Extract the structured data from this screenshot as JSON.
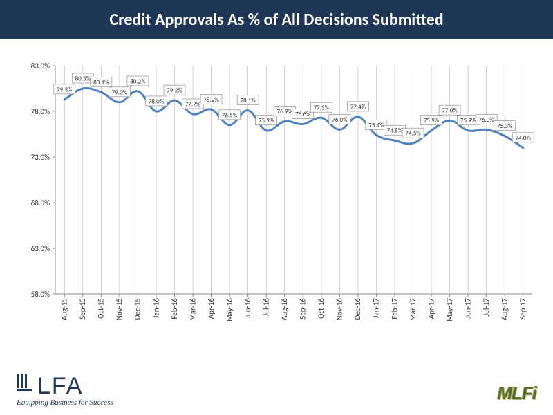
{
  "title": "Credit Approvals As % of All Decisions Submitted",
  "chart": {
    "type": "line",
    "background_color": "#ffffff",
    "line_color": "#4f81bd",
    "line_width": 3,
    "grid_color": "#a6a6a6",
    "axis_color": "#888888",
    "label_border_color": "#8f8f8f",
    "label_bg": "#ffffff",
    "label_fontsize": 9,
    "axis_fontsize": 11,
    "ylim": [
      58.0,
      83.0
    ],
    "ytick_step": 5.0,
    "y_format": "percent1",
    "categories": [
      "Aug-15",
      "Sep-15",
      "Oct-15",
      "Nov-15",
      "Dec-15",
      "Jan-16",
      "Feb-16",
      "Mar-16",
      "Apr-16",
      "May-16",
      "Jun-16",
      "Jul-16",
      "Aug-16",
      "Sep-16",
      "Oct-16",
      "Nov-16",
      "Dec-16",
      "Jan-17",
      "Feb-17",
      "Mar-17",
      "Apr-17",
      "May-17",
      "Jun-17",
      "Jul-17",
      "Aug-17",
      "Sep-17"
    ],
    "values": [
      79.3,
      80.5,
      80.1,
      79.0,
      80.2,
      78.0,
      79.2,
      77.7,
      78.2,
      76.5,
      78.1,
      75.9,
      76.9,
      76.6,
      77.3,
      76.0,
      77.4,
      75.4,
      74.8,
      74.5,
      75.9,
      77.0,
      75.9,
      76.0,
      75.3,
      74.0
    ],
    "data_label_text": [
      "79.3%",
      "80.5%",
      "80.1%",
      "79.0%",
      "80.2%",
      "78.0%",
      "79.2%",
      "77.7%",
      "78.2%",
      "76.5%",
      "78.1%",
      "75.9%",
      "76.9%",
      "76.6%",
      "77.3%",
      "76.0%",
      "77.4%",
      "75.4%",
      "74.8%",
      "74.5%",
      "75.9%",
      "77.0%",
      "75.9%",
      "76.0%",
      "75.3%",
      "74.0%"
    ]
  },
  "logos": {
    "left_main": "LFA",
    "left_tagline": "Equipping Business for Success",
    "right": "MLFi"
  }
}
